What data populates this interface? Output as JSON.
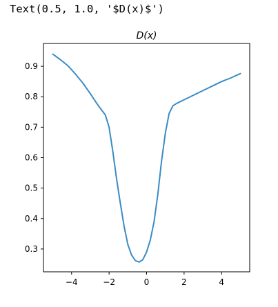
{
  "output_text": "Text(0.5, 1.0, '$D(x)$')",
  "chart_data": {
    "type": "line",
    "title": "D(x)",
    "xlabel": "",
    "ylabel": "",
    "xlim": [
      -5.5,
      5.5
    ],
    "ylim": [
      0.225,
      0.975
    ],
    "x_ticks": [
      -4,
      -2,
      0,
      2,
      4
    ],
    "x_tick_labels": [
      "−4",
      "−2",
      "0",
      "2",
      "4"
    ],
    "y_ticks": [
      0.3,
      0.4,
      0.5,
      0.6,
      0.7,
      0.8,
      0.9
    ],
    "y_tick_labels": [
      "0.3",
      "0.4",
      "0.5",
      "0.6",
      "0.7",
      "0.8",
      "0.9"
    ],
    "grid": false,
    "line_color": "#3a8bc6",
    "series": [
      {
        "x": [
          -5,
          -4.6,
          -4.2,
          -3.8,
          -3.4,
          -3.0,
          -2.6,
          -2.2,
          -2.0,
          -1.8,
          -1.6,
          -1.4,
          -1.2,
          -1.0,
          -0.8,
          -0.6,
          -0.4,
          -0.2,
          0.0,
          0.2,
          0.4,
          0.6,
          0.8,
          1.0,
          1.2,
          1.4,
          1.6,
          2.0,
          2.5,
          3.0,
          3.5,
          4.0,
          4.5,
          5.0
        ],
        "y": [
          0.94,
          0.922,
          0.902,
          0.875,
          0.845,
          0.81,
          0.773,
          0.74,
          0.7,
          0.62,
          0.53,
          0.45,
          0.375,
          0.315,
          0.28,
          0.262,
          0.257,
          0.265,
          0.29,
          0.33,
          0.39,
          0.48,
          0.59,
          0.68,
          0.745,
          0.77,
          0.778,
          0.79,
          0.805,
          0.82,
          0.835,
          0.85,
          0.862,
          0.876
        ]
      }
    ]
  }
}
